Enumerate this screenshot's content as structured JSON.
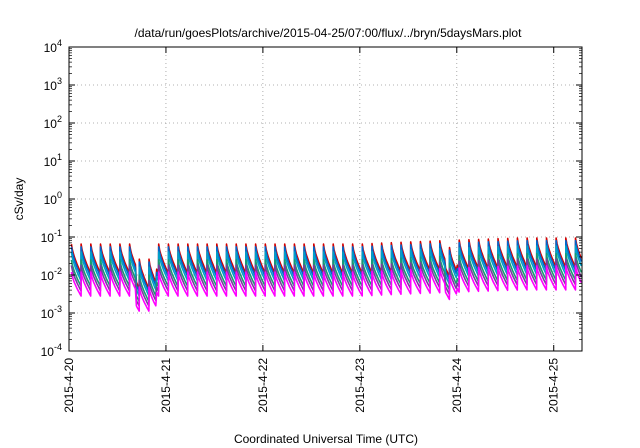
{
  "chart_data": {
    "type": "line",
    "title": "/data/run/goesPlots/archive/2015-04-25/07:00/flux/../bryn/5daysMars.plot",
    "xlabel": "Coordinated Universal Time (UTC)",
    "ylabel": "cSv/day",
    "yscale": "log",
    "ylim": [
      0.0001,
      10000
    ],
    "ytick_labels": [
      {
        "base": "10",
        "exp": "-4",
        "value": 0.0001
      },
      {
        "base": "10",
        "exp": "-3",
        "value": 0.001
      },
      {
        "base": "10",
        "exp": "-2",
        "value": 0.01
      },
      {
        "base": "10",
        "exp": "-1",
        "value": 0.1
      },
      {
        "base": "10",
        "exp": "0",
        "value": 1
      },
      {
        "base": "10",
        "exp": "1",
        "value": 10
      },
      {
        "base": "10",
        "exp": "2",
        "value": 100
      },
      {
        "base": "10",
        "exp": "3",
        "value": 1000
      },
      {
        "base": "10",
        "exp": "4",
        "value": 10000
      }
    ],
    "xlim": [
      "2015-04-20T00:00",
      "2015-04-25T07:00"
    ],
    "xtick_labels": [
      "2015-4-20",
      "2015-4-21",
      "2015-4-22",
      "2015-4-23",
      "2015-4-24",
      "2015-4-25"
    ],
    "grid": true,
    "legend": "none",
    "pattern": {
      "period_hours": 2.4,
      "note_peak": "sawtooth, each cycle jumps to peak then decays"
    },
    "series": [
      {
        "color": "#d40000",
        "peak": 0.065,
        "trough": 0.011
      },
      {
        "color": "#0066cc",
        "peak": 0.055,
        "trough": 0.009
      },
      {
        "color": "#00a0c8",
        "peak": 0.04,
        "trough": 0.007
      },
      {
        "color": "#1a9a70",
        "peak": 0.025,
        "trough": 0.005
      },
      {
        "color": "#7a3aa0",
        "peak": 0.018,
        "trough": 0.0038
      },
      {
        "color": "#ff00ff",
        "peak": 0.012,
        "trough": 0.0028
      }
    ]
  }
}
